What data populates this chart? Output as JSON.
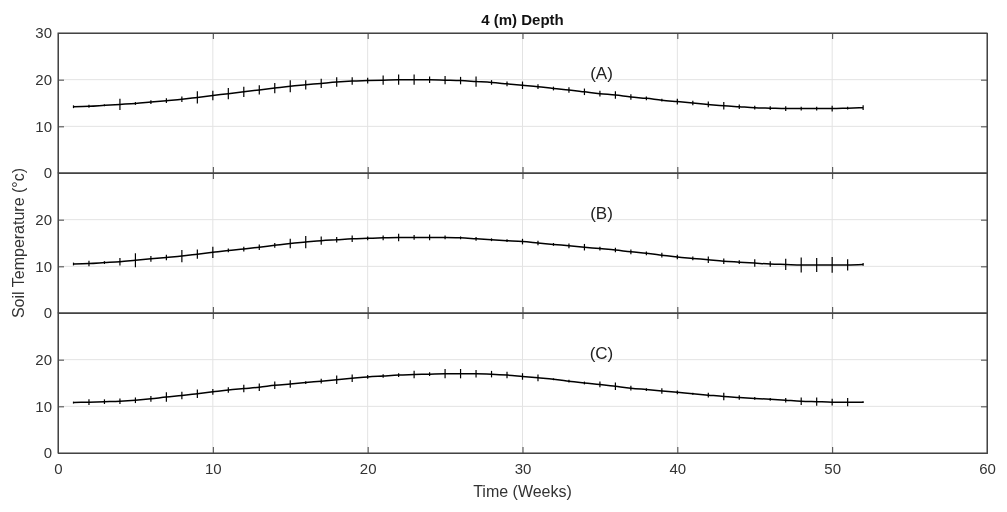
{
  "chart_data": [
    {
      "type": "line",
      "title": "4 (m) Depth",
      "annotations": [
        "(A)"
      ],
      "x": [
        1,
        2,
        3,
        4,
        5,
        6,
        7,
        8,
        9,
        10,
        11,
        12,
        13,
        14,
        15,
        16,
        17,
        18,
        19,
        20,
        21,
        22,
        23,
        24,
        25,
        26,
        27,
        28,
        29,
        30,
        31,
        32,
        33,
        34,
        35,
        36,
        37,
        38,
        39,
        40,
        41,
        42,
        43,
        44,
        45,
        46,
        47,
        48,
        49,
        50,
        51,
        52
      ],
      "series": [
        {
          "color": "#000000",
          "values": [
            14.2,
            14.3,
            14.5,
            14.7,
            14.9,
            15.2,
            15.5,
            15.8,
            16.2,
            16.6,
            17.0,
            17.4,
            17.8,
            18.2,
            18.6,
            18.9,
            19.2,
            19.5,
            19.7,
            19.8,
            19.9,
            20.0,
            20.0,
            20.0,
            19.9,
            19.8,
            19.6,
            19.4,
            19.1,
            18.8,
            18.5,
            18.1,
            17.8,
            17.4,
            17.0,
            16.7,
            16.3,
            16.0,
            15.6,
            15.3,
            15.0,
            14.7,
            14.4,
            14.2,
            14.0,
            13.9,
            13.8,
            13.8,
            13.8,
            13.8,
            13.9,
            14.0
          ],
          "errors": [
            0.3,
            0.3,
            0.2,
            1.2,
            0.3,
            0.4,
            0.5,
            0.6,
            1.3,
            1.0,
            1.2,
            1.1,
            1.0,
            1.1,
            1.3,
            1.0,
            1.0,
            1.0,
            0.8,
            0.6,
            1.0,
            1.1,
            1.1,
            0.7,
            0.9,
            0.8,
            1.1,
            0.5,
            0.5,
            0.8,
            0.5,
            0.4,
            0.6,
            0.7,
            0.6,
            0.8,
            0.6,
            0.4,
            0.3,
            0.6,
            0.5,
            0.6,
            0.8,
            0.5,
            0.4,
            0.4,
            0.5,
            0.4,
            0.4,
            0.6,
            0.3,
            0.5
          ]
        }
      ],
      "xlim": [
        0,
        60
      ],
      "xticks": [
        0,
        10,
        20,
        30,
        40,
        50,
        60
      ],
      "ylim": [
        0,
        30
      ],
      "yticks": [
        0,
        10,
        20,
        30
      ],
      "grid": true,
      "tick_labels": "y"
    },
    {
      "type": "line",
      "ylabel": "Soil Temperature (°c)",
      "annotations": [
        "(B)"
      ],
      "x": [
        1,
        2,
        3,
        4,
        5,
        6,
        7,
        8,
        9,
        10,
        11,
        12,
        13,
        14,
        15,
        16,
        17,
        18,
        19,
        20,
        21,
        22,
        23,
        24,
        25,
        26,
        27,
        28,
        29,
        30,
        31,
        32,
        33,
        34,
        35,
        36,
        37,
        38,
        39,
        40,
        41,
        42,
        43,
        44,
        45,
        46,
        47,
        48,
        49,
        50,
        51,
        52
      ],
      "series": [
        {
          "color": "#000000",
          "values": [
            10.5,
            10.6,
            10.8,
            11.0,
            11.3,
            11.6,
            11.9,
            12.2,
            12.6,
            13.0,
            13.4,
            13.7,
            14.1,
            14.5,
            14.9,
            15.2,
            15.5,
            15.7,
            15.9,
            16.0,
            16.1,
            16.2,
            16.2,
            16.2,
            16.2,
            16.1,
            15.9,
            15.7,
            15.5,
            15.3,
            15.0,
            14.7,
            14.4,
            14.1,
            13.8,
            13.5,
            13.1,
            12.8,
            12.4,
            12.0,
            11.7,
            11.4,
            11.1,
            10.9,
            10.7,
            10.5,
            10.4,
            10.3,
            10.3,
            10.3,
            10.3,
            10.4
          ],
          "errors": [
            0.3,
            0.6,
            0.3,
            0.8,
            1.5,
            0.6,
            0.6,
            1.3,
            1.0,
            1.2,
            0.4,
            0.5,
            0.6,
            0.5,
            1.0,
            1.3,
            0.9,
            0.6,
            0.7,
            0.4,
            0.5,
            0.8,
            0.5,
            0.6,
            0.4,
            0.3,
            0.4,
            0.3,
            0.3,
            0.6,
            0.5,
            0.3,
            0.5,
            0.7,
            0.4,
            0.5,
            0.5,
            0.4,
            0.5,
            0.5,
            0.4,
            0.7,
            0.6,
            0.4,
            0.8,
            0.6,
            1.2,
            1.6,
            1.5,
            1.7,
            1.2,
            0.3
          ]
        }
      ],
      "xlim": [
        0,
        60
      ],
      "xticks": [
        0,
        10,
        20,
        30,
        40,
        50,
        60
      ],
      "ylim": [
        0,
        30
      ],
      "yticks": [
        0,
        10,
        20
      ],
      "grid": true,
      "tick_labels": "y"
    },
    {
      "type": "line",
      "xlabel": "Time (Weeks)",
      "annotations": [
        "(C)"
      ],
      "x": [
        1,
        2,
        3,
        4,
        5,
        6,
        7,
        8,
        9,
        10,
        11,
        12,
        13,
        14,
        15,
        16,
        17,
        18,
        19,
        20,
        21,
        22,
        23,
        24,
        25,
        26,
        27,
        28,
        29,
        30,
        31,
        32,
        33,
        34,
        35,
        36,
        37,
        38,
        39,
        40,
        41,
        42,
        43,
        44,
        45,
        46,
        47,
        48,
        49,
        50,
        51,
        52
      ],
      "series": [
        {
          "color": "#000000",
          "values": [
            10.8,
            10.9,
            11.0,
            11.1,
            11.3,
            11.6,
            12.0,
            12.3,
            12.7,
            13.1,
            13.5,
            13.8,
            14.1,
            14.5,
            14.8,
            15.1,
            15.4,
            15.7,
            16.0,
            16.3,
            16.5,
            16.7,
            16.8,
            16.9,
            17.0,
            17.0,
            17.0,
            16.9,
            16.7,
            16.4,
            16.1,
            15.8,
            15.4,
            15.0,
            14.7,
            14.3,
            13.9,
            13.6,
            13.3,
            13.0,
            12.7,
            12.4,
            12.1,
            11.9,
            11.7,
            11.5,
            11.3,
            11.1,
            11.0,
            10.9,
            10.9,
            10.9
          ],
          "errors": [
            0.2,
            0.6,
            0.5,
            0.6,
            0.6,
            0.6,
            1.0,
            0.8,
            0.9,
            0.6,
            0.6,
            0.8,
            0.8,
            0.8,
            0.8,
            0.3,
            0.5,
            0.9,
            0.8,
            0.4,
            0.4,
            0.4,
            0.8,
            0.4,
            1.0,
            1.0,
            0.8,
            0.7,
            0.7,
            0.7,
            0.7,
            0.2,
            0.3,
            0.3,
            0.6,
            0.8,
            0.5,
            0.3,
            0.6,
            0.4,
            0.2,
            0.5,
            0.8,
            0.5,
            0.3,
            0.3,
            0.5,
            0.8,
            0.9,
            0.7,
            0.9,
            0.2
          ]
        }
      ],
      "xlim": [
        0,
        60
      ],
      "xticks": [
        0,
        10,
        20,
        30,
        40,
        50,
        60
      ],
      "ylim": [
        0,
        30
      ],
      "yticks": [
        0,
        10,
        20
      ],
      "grid": true
    }
  ]
}
